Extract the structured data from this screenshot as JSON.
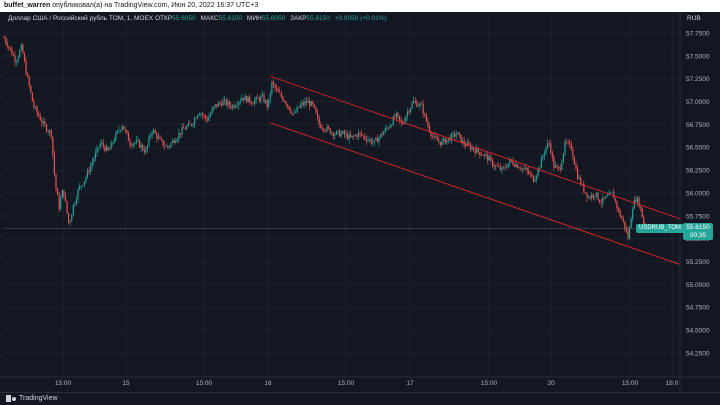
{
  "header": {
    "author": "buffet_warren",
    "published_text": "опубликовал(а) на TradingView.com, Июн 20, 2022 16:37 UTC+3"
  },
  "legend": {
    "symbol": "Доллар США / Российский рубль TOM, 1, MOEX",
    "open_label": "ОТКР",
    "open_value": "55.6050",
    "high_label": "МАКС",
    "high_value": "55.6150",
    "low_label": "МИН",
    "low_value": "55.6050",
    "close_label": "ЗАКР",
    "close_value": "55.6150",
    "change": "+0.0050 (+0.01%)"
  },
  "currency": "RUB",
  "last_price": {
    "symbol_tag": "USDRUB_TOM",
    "price": "55.6150",
    "countdown": "00:35"
  },
  "footer": {
    "brand": "TradingView"
  },
  "colors": {
    "background": "#131722",
    "up": "#26a69a",
    "down": "#ef5350",
    "channel": "#e0242b",
    "grid": "#1e222d"
  },
  "chart_data": {
    "type": "candlestick",
    "ylim": [
      54.0,
      57.85
    ],
    "y_ticks": [
      "57.7500",
      "57.5000",
      "57.2500",
      "57.0000",
      "56.7500",
      "56.5000",
      "56.2500",
      "56.0000",
      "55.7500",
      "55.5000",
      "55.2500",
      "55.0000",
      "54.7500",
      "54.5000",
      "54.2500"
    ],
    "x_ticks": [
      "15:00",
      "15",
      "15:00",
      "16",
      "15:00",
      "17",
      "15:00",
      "20",
      "15:00",
      "18:0"
    ],
    "last_price": 55.615,
    "price_path": [
      [
        0,
        57.7
      ],
      [
        12,
        57.45
      ],
      [
        18,
        57.6
      ],
      [
        22,
        57.35
      ],
      [
        30,
        56.95
      ],
      [
        40,
        56.75
      ],
      [
        48,
        56.65
      ],
      [
        52,
        56.1
      ],
      [
        56,
        55.85
      ],
      [
        60,
        56.05
      ],
      [
        66,
        55.65
      ],
      [
        70,
        55.85
      ],
      [
        76,
        56.05
      ],
      [
        82,
        56.15
      ],
      [
        90,
        56.35
      ],
      [
        98,
        56.55
      ],
      [
        106,
        56.45
      ],
      [
        112,
        56.6
      ],
      [
        120,
        56.75
      ],
      [
        128,
        56.55
      ],
      [
        136,
        56.55
      ],
      [
        144,
        56.45
      ],
      [
        150,
        56.7
      ],
      [
        160,
        56.55
      ],
      [
        166,
        56.5
      ],
      [
        174,
        56.6
      ],
      [
        182,
        56.7
      ],
      [
        190,
        56.75
      ],
      [
        198,
        56.9
      ],
      [
        206,
        56.8
      ],
      [
        214,
        56.95
      ],
      [
        222,
        57.0
      ],
      [
        232,
        56.95
      ],
      [
        242,
        57.05
      ],
      [
        252,
        57.0
      ],
      [
        262,
        57.05
      ],
      [
        268,
        56.95
      ],
      [
        272,
        57.2
      ],
      [
        278,
        57.1
      ],
      [
        286,
        57.0
      ],
      [
        294,
        56.85
      ],
      [
        300,
        56.95
      ],
      [
        308,
        57.0
      ],
      [
        314,
        56.95
      ],
      [
        320,
        56.75
      ],
      [
        328,
        56.7
      ],
      [
        336,
        56.65
      ],
      [
        344,
        56.65
      ],
      [
        352,
        56.6
      ],
      [
        360,
        56.65
      ],
      [
        368,
        56.6
      ],
      [
        376,
        56.55
      ],
      [
        384,
        56.65
      ],
      [
        392,
        56.75
      ],
      [
        398,
        56.85
      ],
      [
        404,
        56.75
      ],
      [
        410,
        56.9
      ],
      [
        416,
        57.0
      ],
      [
        424,
        56.95
      ],
      [
        430,
        56.75
      ],
      [
        436,
        56.6
      ],
      [
        444,
        56.55
      ],
      [
        452,
        56.6
      ],
      [
        460,
        56.65
      ],
      [
        466,
        56.55
      ],
      [
        474,
        56.5
      ],
      [
        482,
        56.45
      ],
      [
        490,
        56.4
      ],
      [
        498,
        56.3
      ],
      [
        506,
        56.25
      ],
      [
        514,
        56.35
      ],
      [
        522,
        56.3
      ],
      [
        530,
        56.25
      ],
      [
        538,
        56.15
      ],
      [
        544,
        56.3
      ],
      [
        550,
        56.5
      ],
      [
        554,
        56.55
      ],
      [
        558,
        56.3
      ],
      [
        564,
        56.25
      ],
      [
        570,
        56.55
      ],
      [
        576,
        56.5
      ],
      [
        582,
        56.2
      ],
      [
        588,
        56.05
      ],
      [
        594,
        55.95
      ],
      [
        600,
        56.0
      ],
      [
        606,
        55.9
      ],
      [
        612,
        55.95
      ],
      [
        618,
        56.0
      ],
      [
        624,
        55.8
      ],
      [
        630,
        55.65
      ],
      [
        634,
        55.5
      ],
      [
        638,
        55.85
      ],
      [
        642,
        55.95
      ],
      [
        646,
        55.85
      ],
      [
        650,
        55.65
      ],
      [
        654,
        55.615
      ]
    ],
    "channel": {
      "upper": {
        "from": [
          270,
          57.28
        ],
        "to": [
          680,
          55.72
        ]
      },
      "lower": {
        "from": [
          270,
          56.77
        ],
        "to": [
          680,
          55.22
        ]
      }
    }
  }
}
